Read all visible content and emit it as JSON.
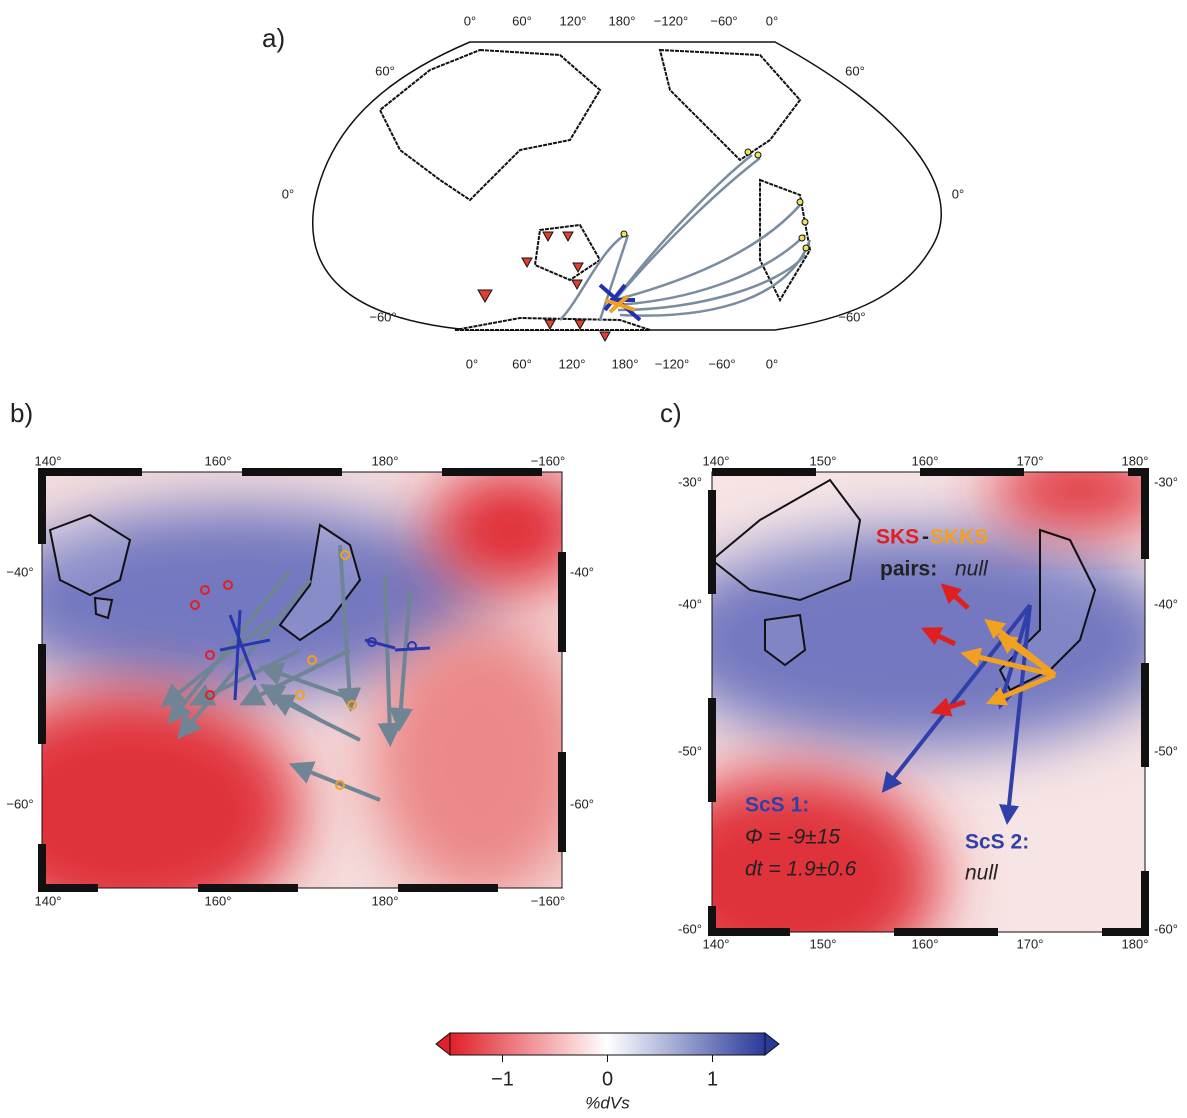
{
  "panels": [
    {
      "label": "a)",
      "top_ticks": [
        "0°",
        "60°",
        "120°",
        "180°",
        "−120°",
        "−60°",
        "0°"
      ],
      "left_ticks": [
        "60°",
        "0°",
        "−60°"
      ],
      "right_ticks": [
        "60°",
        "0°",
        "−60°"
      ],
      "bottom_ticks": [
        "0°",
        "60°",
        "120°",
        "180°",
        "−120°",
        "−60°",
        "0°"
      ]
    },
    {
      "label": "b)",
      "top_ticks": [
        "140°",
        "160°",
        "180°",
        "−160°"
      ],
      "left_ticks": [
        "−40°",
        "−60°"
      ],
      "right_ticks": [
        "-40°",
        "-60°"
      ],
      "bottom_ticks": [
        "140°",
        "160°",
        "180°",
        "−160°"
      ]
    },
    {
      "label": "c)",
      "top_ticks": [
        "140°",
        "150°",
        "160°",
        "170°",
        "180°"
      ],
      "left_ticks": [
        "-30°",
        "-40°",
        "-50°",
        "-60°"
      ],
      "right_ticks": [
        "-30°",
        "-40°",
        "-50°",
        "-60°"
      ],
      "bottom_ticks": [
        "140°",
        "150°",
        "160°",
        "170°",
        "180°"
      ],
      "annotations": {
        "sks": "SKS",
        "dash": "-",
        "skks": "SKKS",
        "pairs": "pairs:",
        "pairs_result": "null",
        "scs1": "ScS 1:",
        "phi": "Φ = -9±15",
        "dt": "dt = 1.9±0.6",
        "scs2": "ScS 2:",
        "scs2_result": "null"
      }
    }
  ],
  "colorbar": {
    "range": [
      -1.5,
      1.5
    ],
    "ticks": [
      {
        "value": -1,
        "label": "−1"
      },
      0,
      1
    ],
    "label": "%dVs"
  }
}
